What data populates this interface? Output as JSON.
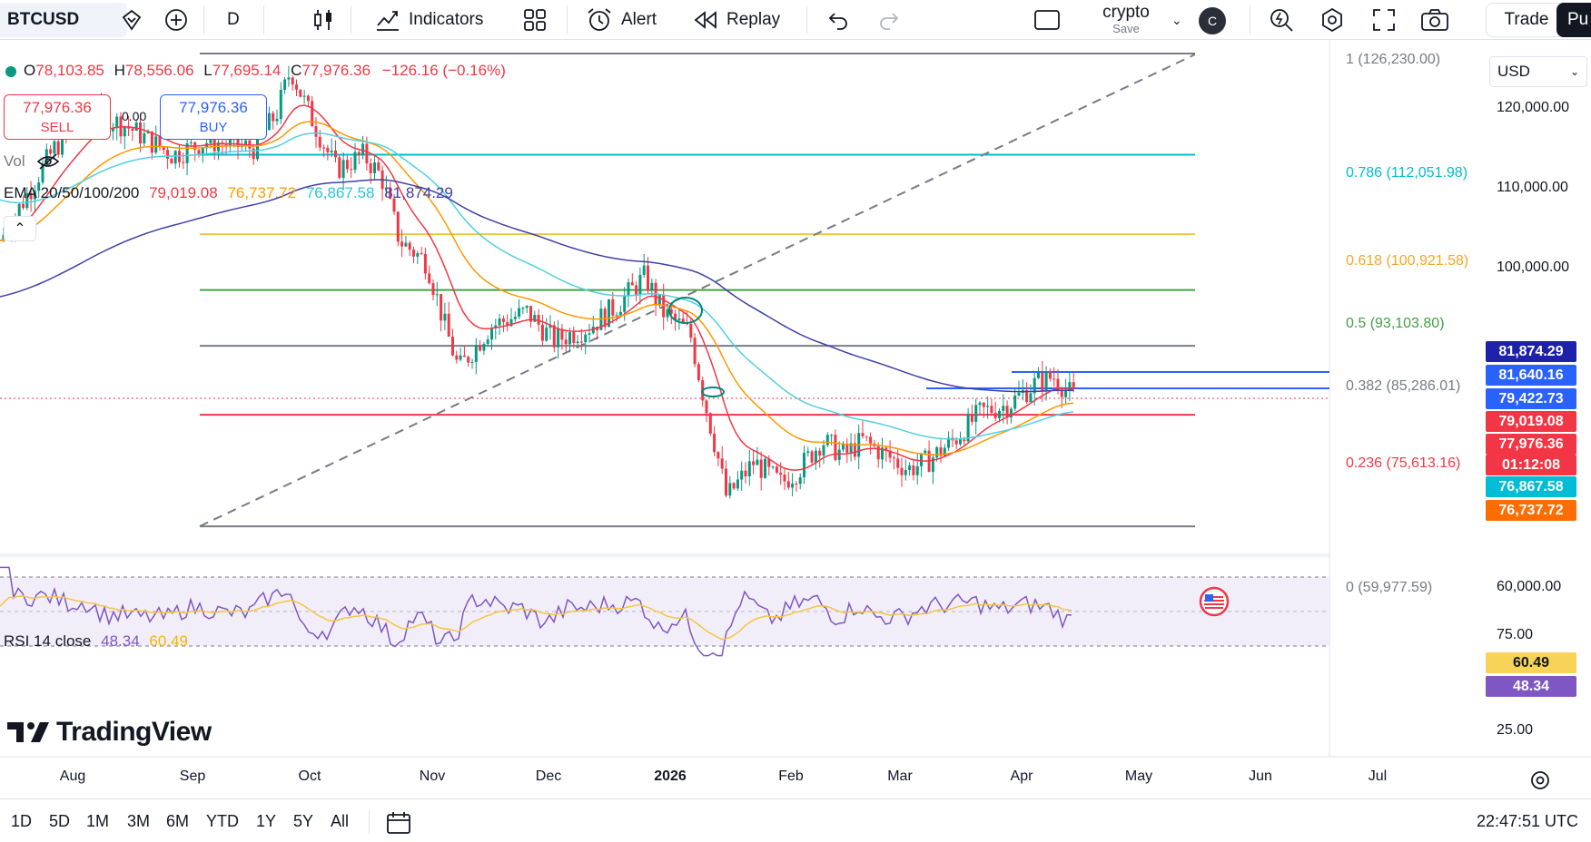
{
  "toolbar": {
    "symbol": "BTCUSD",
    "interval": "D",
    "indicators_label": "Indicators",
    "alert_label": "Alert",
    "replay_label": "Replay",
    "layout_name": "crypto",
    "layout_save": "Save",
    "avatar_letter": "C",
    "trade_label": "Trade",
    "publish_label": "Pu"
  },
  "legend": {
    "open_label": "O",
    "open": "78,103.85",
    "high_label": "H",
    "high": "78,556.06",
    "low_label": "L",
    "low": "77,695.14",
    "close_label": "C",
    "close": "77,976.36",
    "change": "−126.16 (−0.16%)",
    "sell_price": "77,976.36",
    "sell_label": "SELL",
    "buy_price": "77,976.36",
    "buy_label": "BUY",
    "spread": "0.00",
    "vol_label": "Vol",
    "ema_label": "EMA 20/50/100/200",
    "ema20": "79,019.08",
    "ema50": "76,737.72",
    "ema100": "76,867.58",
    "ema200": "81,874.29",
    "rsi_label": "RSI 14 close",
    "rsi_value": "48.34",
    "rsi_ma": "60.49"
  },
  "currency": "USD",
  "price_axis": [
    "120,000.00",
    "110,000.00",
    "100,000.00",
    "60,000.00"
  ],
  "price_tags": [
    {
      "text": "81,874.29",
      "color": "#1e22aa"
    },
    {
      "text": "81,640.16",
      "color": "#2962ff"
    },
    {
      "text": "79,422.73",
      "color": "#2962ff"
    },
    {
      "text": "79,019.08",
      "color": "#f23645"
    },
    {
      "text": "77,976.36",
      "color": "#f23645"
    },
    {
      "text": "01:12:08",
      "color": "#f23645"
    },
    {
      "text": "76,867.58",
      "color": "#00bcd4"
    },
    {
      "text": "76,737.72",
      "color": "#ff6d00"
    }
  ],
  "rsi_axis": [
    "75.00",
    "25.00"
  ],
  "rsi_tags": [
    {
      "text": "60.49",
      "color": "#f7d358"
    },
    {
      "text": "48.34",
      "color": "#7e57c2"
    }
  ],
  "fib_levels": [
    {
      "label": "1 (126,230.00)",
      "color": "#787b86"
    },
    {
      "label": "0.786 (112,051.98)",
      "color": "#00bcd4"
    },
    {
      "label": "0.618 (100,921.58)",
      "color": "#f5a623"
    },
    {
      "label": "0.5 (93,103.80)",
      "color": "#43a047"
    },
    {
      "label": "0.382 (85,286.01)",
      "color": "#787b86"
    },
    {
      "label": "0.236 (75,613.16)",
      "color": "#f23645"
    },
    {
      "label": "0 (59,977.59)",
      "color": "#787b86"
    }
  ],
  "time_axis": [
    "Aug",
    "Sep",
    "Oct",
    "Nov",
    "Dec",
    "2026",
    "Feb",
    "Mar",
    "Apr",
    "May",
    "Jun",
    "Jul"
  ],
  "ranges": [
    "1D",
    "5D",
    "1M",
    "3M",
    "6M",
    "YTD",
    "1Y",
    "5Y",
    "All"
  ],
  "clock": "22:47:51 UTC",
  "logo_text": "TradingView",
  "colors": {
    "up": "#089981",
    "down": "#f23645",
    "ema20": "#f23645",
    "ema50": "#ff9800",
    "ema100": "#4dd0e1",
    "ema200": "#3f3fa8"
  }
}
